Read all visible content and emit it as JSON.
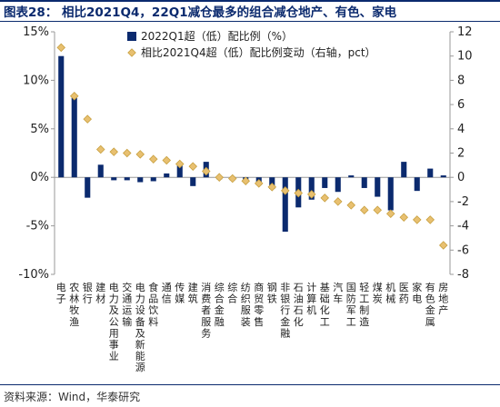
{
  "title": "图表28：  相比2021Q4，22Q1减仓最多的组合减仓地产、有色、家电",
  "source": "资料来源：Wind，华泰研究",
  "colors": {
    "bar": "#0b2a6e",
    "marker": "#e8c070",
    "marker_edge": "#c8a040",
    "axis": "#999999"
  },
  "chart_data": {
    "type": "bar",
    "title": "相比2021Q4，22Q1减仓最多的组合减仓地产、有色、家电",
    "categories": [
      "电子",
      "农林牧渔",
      "银行",
      "建材",
      "电力及公用事业",
      "交通运输",
      "电力设备及新能源",
      "食品饮料",
      "通信",
      "传媒",
      "建筑",
      "消费者服务",
      "综合金融",
      "综合",
      "纺织服装",
      "商贸零售",
      "钢铁",
      "非银行金融",
      "石油石化",
      "计算机",
      "基础化工",
      "汽车",
      "国防军工",
      "轻工制造",
      "煤炭",
      "机械",
      "医药",
      "家电",
      "有色金属",
      "房地产"
    ],
    "series": [
      {
        "name": "2022Q1超（低）配比例（%）",
        "axis": "left",
        "type": "bar",
        "values": [
          12.5,
          8.2,
          -2.1,
          1.3,
          -0.3,
          -0.3,
          -0.5,
          -0.4,
          0.4,
          1.2,
          -0.9,
          1.6,
          -0.2,
          -0.3,
          -0.4,
          -0.8,
          -1.2,
          -5.6,
          -3.1,
          -2.3,
          -1.1,
          -1.5,
          0.2,
          -1.1,
          -2.0,
          -3.4,
          1.6,
          -1.4,
          0.9,
          0.2
        ]
      },
      {
        "name": "相比2021Q4超（低）配比例变动（右轴，pct）",
        "axis": "right",
        "type": "scatter",
        "values": [
          10.7,
          6.7,
          4.8,
          2.3,
          2.1,
          2.0,
          1.9,
          1.5,
          1.4,
          1.1,
          0.9,
          0.5,
          0.0,
          -0.1,
          -0.3,
          -0.5,
          -0.8,
          -1.1,
          -1.3,
          -1.4,
          -1.7,
          -2.0,
          -2.3,
          -2.7,
          -2.7,
          -3.0,
          -3.3,
          -3.5,
          -3.5,
          -5.6
        ]
      }
    ],
    "y_left": {
      "min": -10,
      "max": 15,
      "ticks": [
        "-10%",
        "-5%",
        "0%",
        "5%",
        "10%",
        "15%"
      ]
    },
    "y_right": {
      "min": -8,
      "max": 12,
      "ticks": [
        "-8",
        "-6",
        "-4",
        "-2",
        "0",
        "2",
        "4",
        "6",
        "8",
        "10",
        "12"
      ]
    },
    "legend": "top-right",
    "grid": false
  }
}
